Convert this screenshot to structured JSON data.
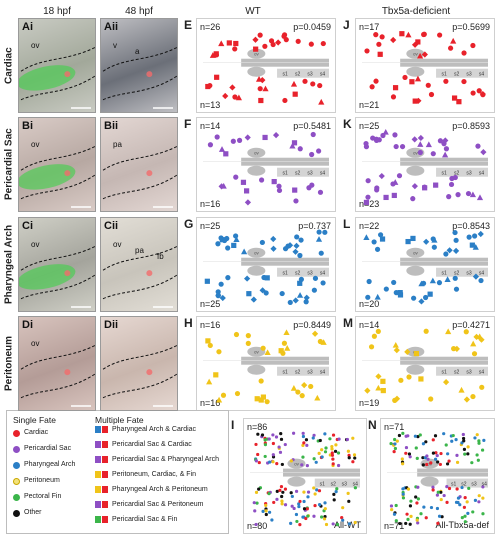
{
  "headers": {
    "c1": "18 hpf",
    "c2": "48 hpf",
    "c3": "WT",
    "c4": "Tbx5a-deficient"
  },
  "rows": [
    {
      "name": "Cardiac",
      "color": "#e8222b",
      "left": {
        "label": "E",
        "ntop": "n=26",
        "nbot": "n=13",
        "p": "p=0.0459"
      },
      "right": {
        "label": "J",
        "ntop": "n=17",
        "nbot": "n=21",
        "p": "p=0.5699"
      }
    },
    {
      "name": "Pericardial Sac",
      "color": "#8e4fc4",
      "left": {
        "label": "F",
        "ntop": "n=14",
        "nbot": "n=16",
        "p": "p=0.5481"
      },
      "right": {
        "label": "K",
        "ntop": "n=25",
        "nbot": "n=23",
        "p": "p=0.8593"
      }
    },
    {
      "name": "Pharyngeal Arch",
      "color": "#2b7fc6",
      "left": {
        "label": "G",
        "ntop": "n=25",
        "nbot": "n=25",
        "p": "p=0.737"
      },
      "right": {
        "label": "L",
        "ntop": "n=22",
        "nbot": "n=20",
        "p": "p=0.8543"
      }
    },
    {
      "name": "Peritoneum",
      "color": "#f0c419",
      "left": {
        "label": "H",
        "ntop": "n=16",
        "nbot": "n=16",
        "p": "p=0.8449"
      },
      "right": {
        "label": "M",
        "ntop": "n=14",
        "nbot": "n=19",
        "p": "p=0.4271"
      }
    }
  ],
  "micro_labels": [
    {
      "panel": "Ai",
      "marks": [
        "ov"
      ]
    },
    {
      "panel": "Aii",
      "marks": [
        "v",
        "a"
      ]
    },
    {
      "panel": "Bi",
      "marks": [
        "ov"
      ]
    },
    {
      "panel": "Bii",
      "marks": [
        "pa"
      ]
    },
    {
      "panel": "Ci",
      "marks": [
        "ov"
      ]
    },
    {
      "panel": "Cii",
      "marks": [
        "ov",
        "pa",
        "fb"
      ]
    },
    {
      "panel": "Di",
      "marks": [
        "ov"
      ]
    },
    {
      "panel": "Dii",
      "marks": []
    }
  ],
  "bottom": [
    {
      "label": "I",
      "ntop": "n=86",
      "nbot": "n=80",
      "name": "All-WT"
    },
    {
      "label": "N",
      "ntop": "n=71",
      "nbot": "n=71",
      "name": "All-Tbx5a-def"
    }
  ],
  "schematic_labels": [
    "ov",
    "s1",
    "s2",
    "s3",
    "s4"
  ],
  "legend": {
    "single_title": "Single Fate",
    "multi_title": "Multiple Fate",
    "single": [
      {
        "label": "Cardiac",
        "color": "#e8222b"
      },
      {
        "label": "Pericardial Sac",
        "color": "#8e4fc4"
      },
      {
        "label": "Pharyngeal Arch",
        "color": "#2b7fc6"
      },
      {
        "label": "Peritoneum",
        "color": "#f3e27a"
      },
      {
        "label": "Pectoral Fin",
        "color": "#3bb54a"
      },
      {
        "label": "Other",
        "color": "#111111"
      }
    ],
    "multi": [
      {
        "label": "Pharyngeal Arch & Cardiac",
        "color": "#2b7fc6"
      },
      {
        "label": "Pericardial Sac & Cardiac",
        "color": "#8e4fc4"
      },
      {
        "label": "Pericardial Sac & Pharyngeal Arch",
        "color": "#8e4fc4"
      },
      {
        "label": "Peritoneum, Cardiac, & Fin",
        "color": "#f0c419"
      },
      {
        "label": "Pharyngeal Arch & Peritoneum",
        "color": "#f0c419"
      },
      {
        "label": "Pericardial Sac & Peritoneum",
        "color": "#8e4fc4"
      },
      {
        "label": "Pericardial Sac & Fin",
        "color": "#3bb54a"
      }
    ]
  }
}
